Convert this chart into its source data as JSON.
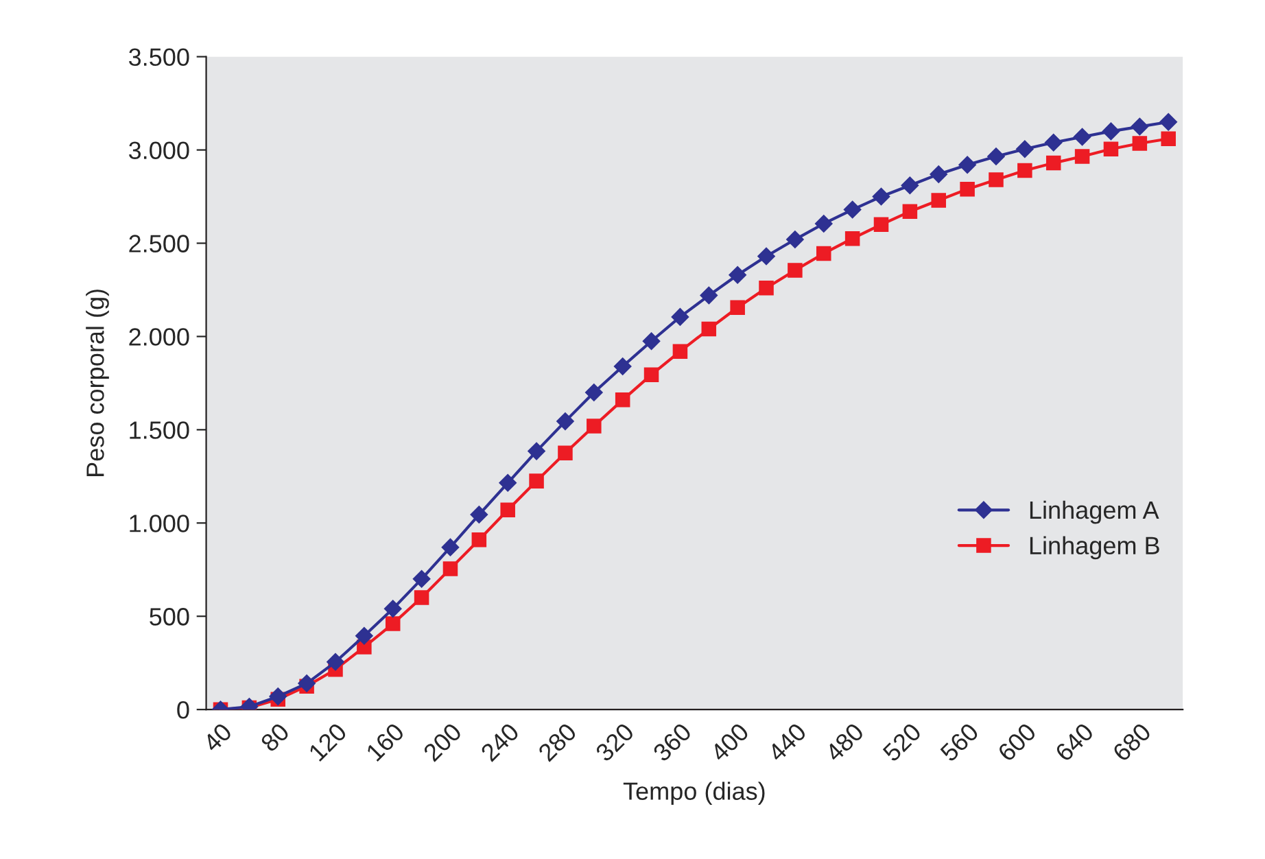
{
  "chart_data": {
    "type": "line",
    "xlabel": "Tempo (dias)",
    "ylabel": "Peso corporal (g)",
    "categories": [
      "40",
      null,
      "80",
      null,
      "120",
      null,
      "160",
      null,
      "200",
      null,
      "240",
      null,
      "280",
      null,
      "320",
      null,
      "360",
      null,
      "400",
      null,
      "440",
      null,
      "480",
      null,
      "520",
      null,
      "560",
      null,
      "600",
      null,
      "640",
      null,
      "680",
      null
    ],
    "series": [
      {
        "name": "Linhagem A",
        "color": "#2e3192",
        "marker": "diamond",
        "values": [
          0,
          15,
          70,
          140,
          255,
          395,
          540,
          700,
          870,
          1045,
          1215,
          1385,
          1545,
          1700,
          1840,
          1975,
          2105,
          2220,
          2330,
          2430,
          2520,
          2605,
          2680,
          2750,
          2810,
          2870,
          2920,
          2965,
          3005,
          3040,
          3070,
          3100,
          3125,
          3150
        ]
      },
      {
        "name": "Linhagem B",
        "color": "#ed1c24",
        "marker": "square",
        "values": [
          0,
          10,
          55,
          125,
          215,
          335,
          460,
          600,
          755,
          910,
          1070,
          1225,
          1375,
          1520,
          1660,
          1795,
          1920,
          2040,
          2155,
          2260,
          2355,
          2445,
          2525,
          2600,
          2670,
          2730,
          2790,
          2840,
          2890,
          2930,
          2965,
          3005,
          3035,
          3060
        ]
      }
    ],
    "ylim": [
      0,
      3500
    ],
    "yticks": [
      0,
      500,
      {
        "value": 1000,
        "label": "1.000"
      },
      {
        "value": 1500,
        "label": "1.500"
      },
      {
        "value": 2000,
        "label": "2.000"
      },
      {
        "value": 2500,
        "label": "2.500"
      },
      {
        "value": 3000,
        "label": "3.000"
      },
      {
        "value": 3500,
        "label": "3.500"
      }
    ],
    "grid": false,
    "legend": "center right",
    "line_style": "solid"
  }
}
